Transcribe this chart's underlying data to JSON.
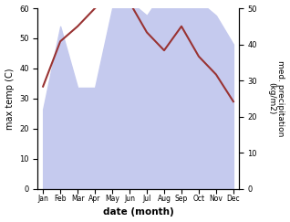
{
  "months": [
    "Jan",
    "Feb",
    "Mar",
    "Apr",
    "May",
    "Jun",
    "Jul",
    "Aug",
    "Sep",
    "Oct",
    "Nov",
    "Dec"
  ],
  "temperature": [
    34,
    49,
    54,
    60,
    65,
    62,
    52,
    46,
    54,
    44,
    38,
    29
  ],
  "precipitation": [
    22,
    45,
    28,
    28,
    50,
    52,
    48,
    55,
    53,
    52,
    48,
    40
  ],
  "temp_color": "#993333",
  "precip_fill_color": "#c5caee",
  "precip_line_color": "#9999cc",
  "ylabel_left": "max temp (C)",
  "ylabel_right": "med. precipitation\n(kg/m2)",
  "xlabel": "date (month)",
  "ylim_left": [
    0,
    60
  ],
  "ylim_right": [
    0,
    50
  ],
  "yticks_left": [
    0,
    10,
    20,
    30,
    40,
    50,
    60
  ],
  "yticks_right": [
    0,
    10,
    20,
    30,
    40,
    50
  ],
  "background_color": "#ffffff"
}
